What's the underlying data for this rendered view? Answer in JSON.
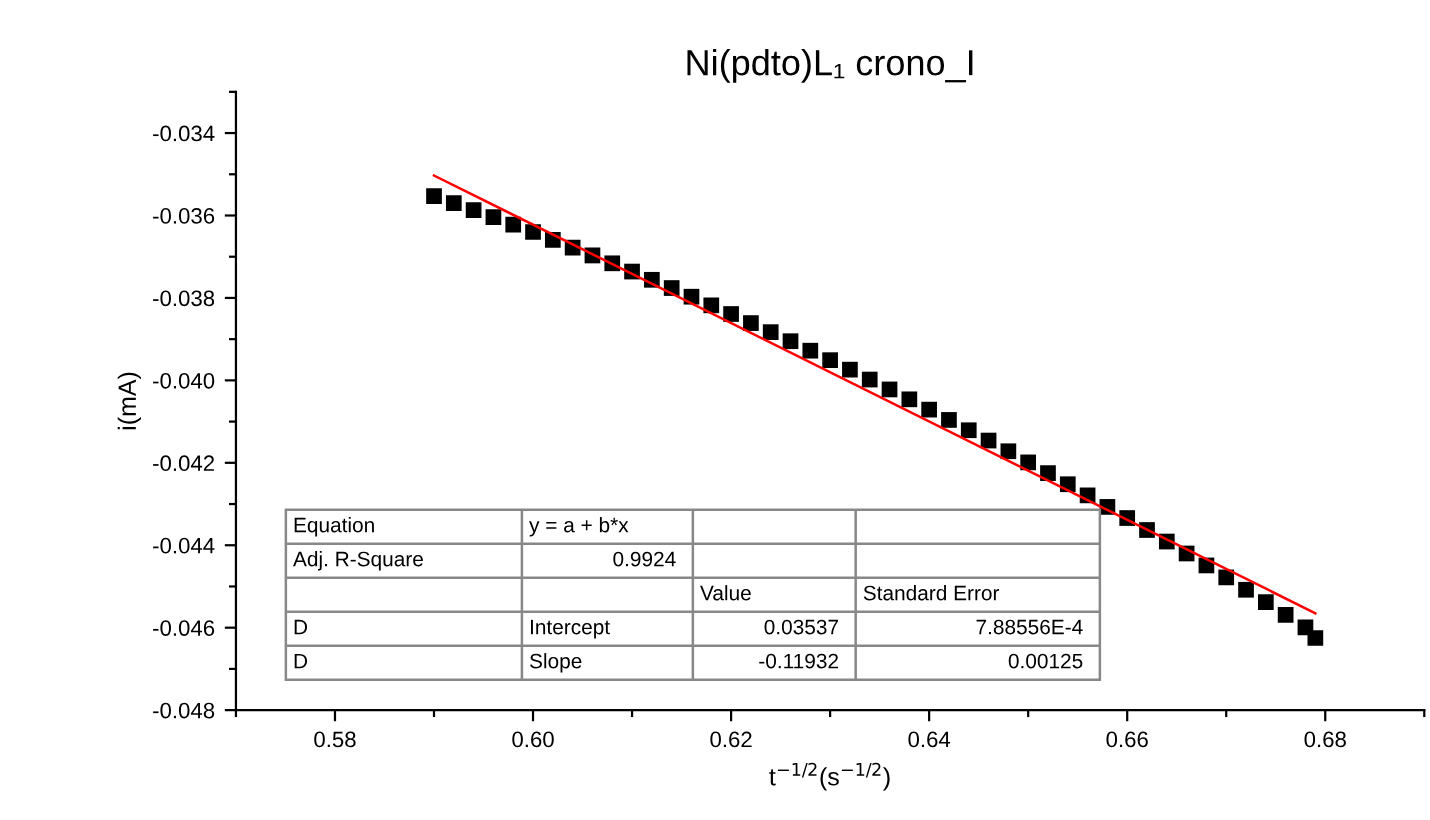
{
  "chart_data": {
    "type": "scatter",
    "title": "Ni(pdto)L₁ crono_I",
    "xlabel": "t$^{−1/2}$(s$^{−1/2}$)",
    "ylabel": "i(mA)",
    "xlim": [
      0.57,
      0.69
    ],
    "ylim": [
      -0.048,
      -0.033
    ],
    "xticks": [
      {
        "value": 0.57,
        "label": null
      },
      {
        "value": 0.58,
        "label": "0.58"
      },
      {
        "value": 0.59,
        "label": null
      },
      {
        "value": 0.6,
        "label": "0.60"
      },
      {
        "value": 0.61,
        "label": null
      },
      {
        "value": 0.62,
        "label": "0.62"
      },
      {
        "value": 0.63,
        "label": null
      },
      {
        "value": 0.64,
        "label": "0.64"
      },
      {
        "value": 0.65,
        "label": null
      },
      {
        "value": 0.66,
        "label": "0.66"
      },
      {
        "value": 0.67,
        "label": null
      },
      {
        "value": 0.68,
        "label": "0.68"
      },
      {
        "value": 0.69,
        "label": null
      }
    ],
    "yticks": [
      {
        "value": -0.048,
        "label": "-0.048"
      },
      {
        "value": -0.047,
        "label": null
      },
      {
        "value": -0.046,
        "label": "-0.046"
      },
      {
        "value": -0.045,
        "label": null
      },
      {
        "value": -0.044,
        "label": "-0.044"
      },
      {
        "value": -0.043,
        "label": null
      },
      {
        "value": -0.042,
        "label": "-0.042"
      },
      {
        "value": -0.041,
        "label": null
      },
      {
        "value": -0.04,
        "label": "-0.040"
      },
      {
        "value": -0.039,
        "label": null
      },
      {
        "value": -0.038,
        "label": "-0.038"
      },
      {
        "value": -0.037,
        "label": null
      },
      {
        "value": -0.036,
        "label": "-0.036"
      },
      {
        "value": -0.035,
        "label": null
      },
      {
        "value": -0.034,
        "label": "-0.034"
      },
      {
        "value": -0.033,
        "label": null
      }
    ],
    "series": [
      {
        "marker": "square",
        "color": "#000000",
        "x": [
          0.59,
          0.592,
          0.594,
          0.596,
          0.598,
          0.6,
          0.602,
          0.604,
          0.606,
          0.608,
          0.61,
          0.612,
          0.614,
          0.616,
          0.618,
          0.62,
          0.622,
          0.624,
          0.626,
          0.628,
          0.63,
          0.632,
          0.634,
          0.636,
          0.638,
          0.64,
          0.642,
          0.644,
          0.646,
          0.648,
          0.65,
          0.652,
          0.654,
          0.656,
          0.658,
          0.66,
          0.662,
          0.664,
          0.666,
          0.668,
          0.67,
          0.672,
          0.674,
          0.676,
          0.678,
          0.679
        ],
        "values": [
          -0.03553,
          -0.0357,
          -0.03587,
          -0.03604,
          -0.03622,
          -0.0364,
          -0.03659,
          -0.03678,
          -0.03697,
          -0.03716,
          -0.03736,
          -0.03756,
          -0.03776,
          -0.03797,
          -0.03818,
          -0.03839,
          -0.03861,
          -0.03883,
          -0.03905,
          -0.03928,
          -0.03951,
          -0.03974,
          -0.03998,
          -0.04022,
          -0.04046,
          -0.04071,
          -0.04096,
          -0.04121,
          -0.04146,
          -0.04172,
          -0.04199,
          -0.04225,
          -0.04252,
          -0.04279,
          -0.04307,
          -0.04334,
          -0.04363,
          -0.04391,
          -0.0442,
          -0.04449,
          -0.04478,
          -0.04508,
          -0.04538,
          -0.04569,
          -0.04599,
          -0.04625
        ]
      },
      {
        "type": "line",
        "color": "#ff0000",
        "x": [
          0.59,
          0.679
        ],
        "values": [
          -0.03503,
          -0.04565
        ]
      }
    ],
    "annotations": [
      "Equation",
      "y = a + b*x",
      "Adj. R-Square",
      "0.9924",
      "Value",
      "Standard Error",
      "D",
      "Intercept",
      "0.03537",
      "7.88556E-4",
      "D",
      "Slope",
      "-0.11932",
      "0.00125"
    ]
  }
}
